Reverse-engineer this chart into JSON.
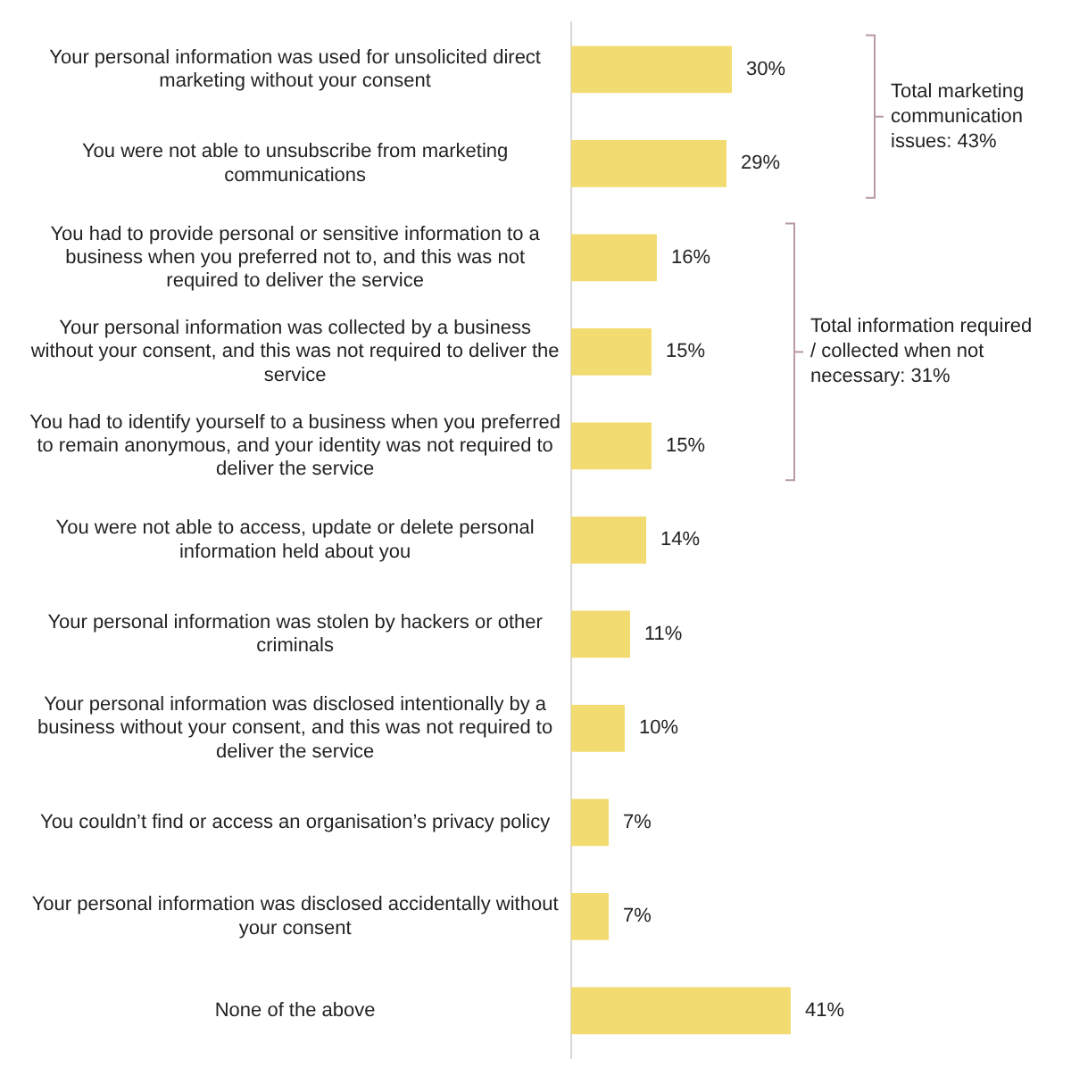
{
  "chart_data": {
    "type": "bar",
    "orientation": "horizontal",
    "categories": [
      "Your personal information was used for unsolicited direct marketing without your consent",
      "You were not able to unsubscribe from marketing communications",
      "You had to provide personal or sensitive information to a business when you preferred not to, and this was not required to deliver the service",
      "Your personal information was collected by a business without your consent, and this was not required to deliver the service",
      "You had to identify yourself to a business when you preferred to remain anonymous, and your identity was not required to deliver the service",
      "You were not able to access, update or delete personal information held about you",
      "Your personal information was stolen by hackers or other criminals",
      "Your personal information was disclosed intentionally by a business without your consent, and this was not required to deliver the service",
      "You couldn’t find or access an organisation’s privacy policy",
      "Your personal information was disclosed accidentally without your consent",
      "None of the above"
    ],
    "values": [
      30,
      29,
      16,
      15,
      15,
      14,
      11,
      10,
      7,
      7,
      41
    ],
    "value_labels": [
      "30%",
      "29%",
      "16%",
      "15%",
      "15%",
      "14%",
      "11%",
      "10%",
      "7%",
      "7%",
      "41%"
    ],
    "color": "#f2dc72",
    "tick_labels": "y",
    "grid": false,
    "legend": false,
    "annotations": [
      "Total marketing communication issues: 43%",
      "Total information required / collected when not necessary: 31%"
    ]
  }
}
